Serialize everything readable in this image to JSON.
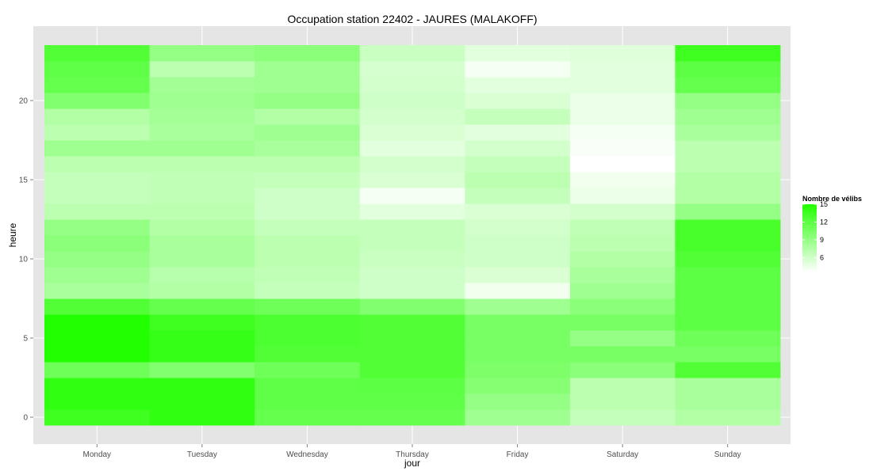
{
  "chart_data": {
    "type": "heatmap",
    "title": "Occupation station 22402 - JAURES (MALAKOFF)",
    "xlabel": "jour",
    "ylabel": "heure",
    "days": [
      "Monday",
      "Tuesday",
      "Wednesday",
      "Thursday",
      "Friday",
      "Saturday",
      "Sunday"
    ],
    "hours": [
      0,
      1,
      2,
      3,
      4,
      5,
      6,
      7,
      8,
      9,
      10,
      11,
      12,
      13,
      14,
      15,
      16,
      17,
      18,
      19,
      20,
      21,
      22,
      23
    ],
    "y_ticks": [
      0,
      5,
      10,
      15,
      20
    ],
    "ylim": [
      -0.5,
      23.5
    ],
    "grid": true,
    "legend": {
      "title": "Nombre de vélibs",
      "position": "right",
      "ticks": [
        6,
        9,
        12,
        15
      ],
      "min": 3.5,
      "max": 15
    },
    "colors": {
      "low": "#ffffff",
      "high": "#22ff00",
      "panel": "#e5e5e5",
      "grid": "#ffffff"
    },
    "values": {
      "Monday": [
        13.5,
        14.2,
        14.2,
        11.0,
        15.0,
        15.0,
        15.0,
        12.5,
        8.0,
        8.5,
        9.0,
        9.5,
        9.0,
        7.0,
        6.5,
        6.5,
        7.0,
        8.5,
        7.0,
        7.5,
        10.0,
        11.5,
        11.8,
        12.5
      ],
      "Tuesday": [
        14.2,
        14.2,
        14.2,
        10.0,
        14.0,
        14.0,
        13.5,
        11.5,
        7.5,
        7.2,
        8.0,
        8.0,
        7.5,
        7.0,
        6.8,
        6.8,
        7.0,
        8.5,
        8.0,
        8.2,
        8.5,
        8.3,
        7.0,
        9.0
      ],
      "Wednesday": [
        11.5,
        11.8,
        11.8,
        11.0,
        12.5,
        12.8,
        12.8,
        11.0,
        6.5,
        6.8,
        7.0,
        7.0,
        6.5,
        6.0,
        6.0,
        6.5,
        7.0,
        8.0,
        8.5,
        7.5,
        9.0,
        8.5,
        8.5,
        9.5
      ],
      "Thursday": [
        11.5,
        11.8,
        12.0,
        12.5,
        12.5,
        12.5,
        12.5,
        10.0,
        6.0,
        6.0,
        6.3,
        6.5,
        6.5,
        5.0,
        4.0,
        5.5,
        5.8,
        5.0,
        5.5,
        5.8,
        6.0,
        5.8,
        5.7,
        6.3
      ],
      "Friday": [
        8.5,
        9.0,
        9.8,
        10.2,
        10.5,
        10.5,
        10.5,
        8.5,
        4.2,
        5.5,
        6.0,
        6.0,
        5.8,
        5.5,
        6.5,
        7.0,
        6.5,
        5.8,
        5.0,
        6.5,
        5.5,
        5.0,
        4.0,
        5.0
      ],
      "Saturday": [
        6.5,
        7.0,
        7.0,
        9.5,
        10.5,
        9.0,
        10.5,
        9.5,
        8.5,
        8.0,
        7.5,
        7.0,
        6.8,
        5.8,
        4.5,
        4.2,
        3.5,
        3.8,
        4.0,
        4.5,
        4.5,
        5.0,
        5.0,
        5.2
      ],
      "Sunday": [
        7.5,
        8.0,
        8.0,
        12.5,
        10.5,
        11.0,
        12.0,
        12.0,
        12.0,
        12.0,
        12.5,
        13.0,
        13.0,
        9.0,
        7.5,
        7.5,
        7.0,
        7.0,
        8.0,
        8.5,
        9.0,
        11.5,
        12.0,
        13.5
      ]
    }
  }
}
